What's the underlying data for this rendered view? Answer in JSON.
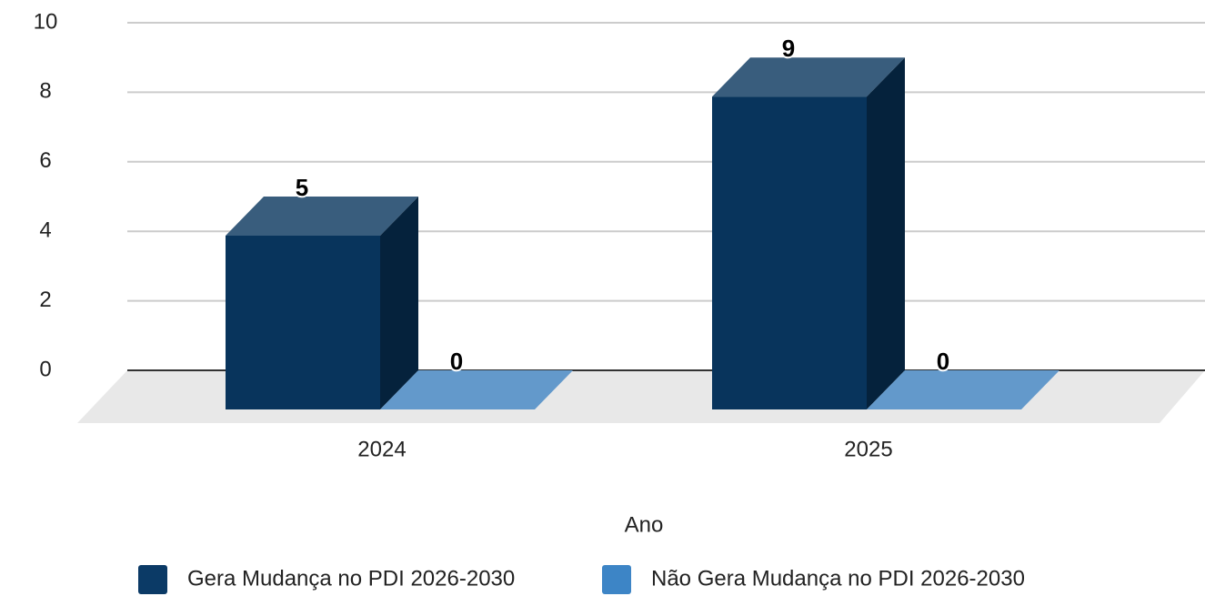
{
  "chart_data": {
    "type": "bar3d",
    "categories": [
      "2024",
      "2025"
    ],
    "x_label": "Ano",
    "series": [
      {
        "name": "Gera Mudança no PDI 2026-2030",
        "color": "#08345c",
        "values": [
          5,
          9
        ]
      },
      {
        "name": "Não Gera Mudança  no PDI 2026-2030",
        "color": "#6399cb",
        "values": [
          0,
          0
        ]
      }
    ],
    "ylim": [
      0,
      10
    ],
    "yticks": [
      0,
      2,
      4,
      6,
      8,
      10
    ],
    "grid": true,
    "legend": "bottom"
  }
}
